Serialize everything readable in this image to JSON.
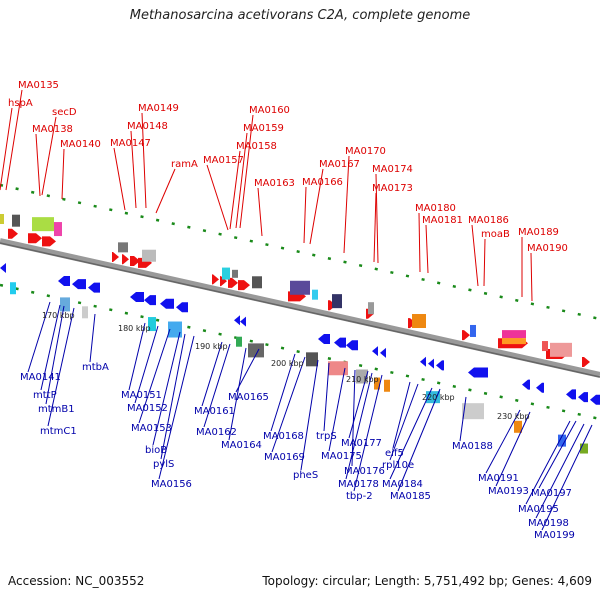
{
  "title": "Methanosarcina acetivorans C2A, complete genome",
  "footer": {
    "accession": "Accession: NC_003552",
    "info": "Topology: circular; Length: 5,751,492 bp; Genes: 4,609"
  },
  "axis_ticks": [
    "170 kbp",
    "180 kbp",
    "190 kbp",
    "200 kbp",
    "210 kbp",
    "220 kbp",
    "230 kbp"
  ],
  "top_labels": [
    "MA0135",
    "hspA",
    "secD",
    "MA0138",
    "MA0140",
    "MA0149",
    "MA0148",
    "MA0147",
    "ramA",
    "MA0160",
    "MA0159",
    "MA0158",
    "MA0157",
    "MA0163",
    "MA0167",
    "MA0166",
    "MA0170",
    "MA0174",
    "MA0173",
    "MA0180",
    "MA0181",
    "MA0186",
    "moaB",
    "MA0189",
    "MA0190"
  ],
  "bottom_labels": [
    "MA0141",
    "mttP",
    "mtmB1",
    "mtmC1",
    "mtbA",
    "MA0151",
    "MA0152",
    "MA0153",
    "bioB",
    "pylS",
    "MA0156",
    "MA0161",
    "MA0162",
    "MA0164",
    "MA0165",
    "MA0168",
    "MA0169",
    "pheS",
    "trpS",
    "MA0175",
    "MA0176",
    "MA0177",
    "MA0178",
    "tbp-2",
    "eif5",
    "rpl10e",
    "MA0184",
    "MA0185",
    "MA0188",
    "MA0191",
    "MA0193",
    "MA0197",
    "MA0195",
    "MA0198",
    "MA0199"
  ]
}
